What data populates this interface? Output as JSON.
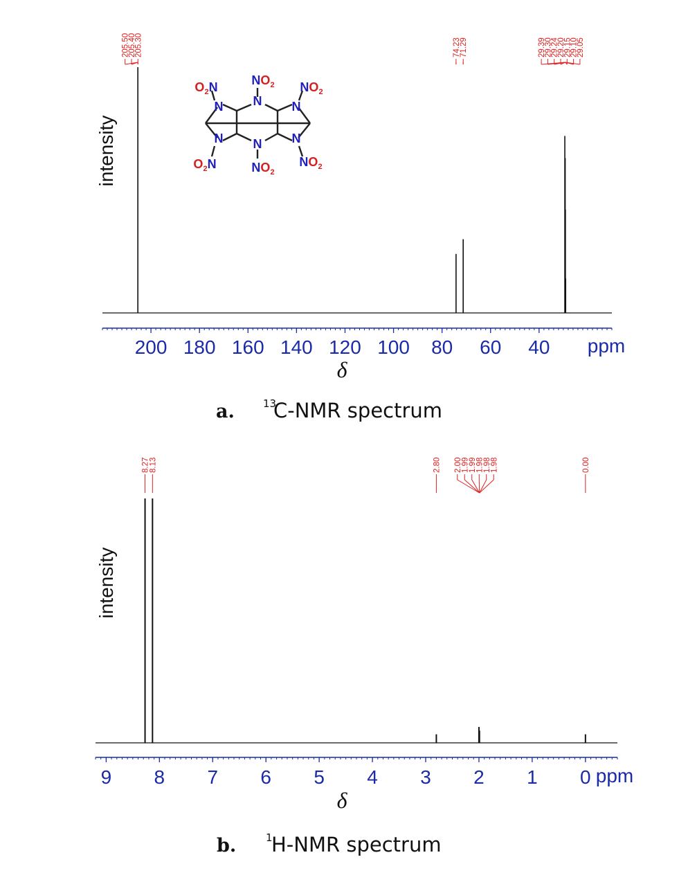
{
  "chart_data": [
    {
      "type": "line",
      "panel_letter": "a.",
      "caption_sup": "13",
      "caption_text": "C-NMR spectrum",
      "ylabel": "intensity",
      "xlabel": "δ",
      "x_unit": "ppm",
      "x_reversed": true,
      "xlim": [
        220,
        10
      ],
      "x_ticks": [
        200,
        180,
        160,
        140,
        120,
        100,
        80,
        60,
        40
      ],
      "peaks": [
        {
          "x": 205.4,
          "height": 1.0
        },
        {
          "x": 74.23,
          "height": 0.24
        },
        {
          "x": 71.29,
          "height": 0.3
        },
        {
          "x": 29.39,
          "height": 0.72
        },
        {
          "x": 29.24,
          "height": 0.63
        },
        {
          "x": 29.15,
          "height": 0.42
        },
        {
          "x": 29.05,
          "height": 0.14
        }
      ],
      "peak_label_groups": [
        {
          "labels": [
            "205.50",
            "205.40",
            "205.30"
          ],
          "target": 205.4
        },
        {
          "labels": [
            "74.23"
          ],
          "target": 74.23
        },
        {
          "labels": [
            "71.29"
          ],
          "target": 71.29
        },
        {
          "labels": [
            "29.39",
            "29.30",
            "29.24",
            "29.20",
            "29.15",
            "29.10",
            "29.05"
          ],
          "target": 29.2
        }
      ],
      "structure": {
        "nitro_labels": [
          "O2N",
          "NO2",
          "NO2",
          "O2N",
          "NO2",
          "NO2"
        ],
        "ring_atom": "N"
      }
    },
    {
      "type": "line",
      "panel_letter": "b.",
      "caption_sup": "1",
      "caption_text": "H-NMR spectrum",
      "ylabel": "intensity",
      "xlabel": "δ",
      "x_unit": "ppm",
      "x_reversed": true,
      "xlim": [
        9.2,
        -0.6
      ],
      "x_ticks": [
        9,
        8,
        7,
        6,
        5,
        4,
        3,
        2,
        1,
        0
      ],
      "peaks": [
        {
          "x": 8.27,
          "height": 1.0
        },
        {
          "x": 8.13,
          "height": 1.0
        },
        {
          "x": 2.8,
          "height": 0.035
        },
        {
          "x": 2.0,
          "height": 0.065
        },
        {
          "x": 1.99,
          "height": 0.05
        },
        {
          "x": 0.0,
          "height": 0.035
        }
      ],
      "peak_label_groups": [
        {
          "labels": [
            "8.27"
          ],
          "target": 8.27
        },
        {
          "labels": [
            "8.13"
          ],
          "target": 8.13
        },
        {
          "labels": [
            "2.80"
          ],
          "target": 2.8
        },
        {
          "labels": [
            "2.00",
            "1.99",
            "1.99",
            "1.98",
            "1.98",
            "1.98"
          ],
          "target": 1.99
        },
        {
          "labels": [
            "0.00"
          ],
          "target": 0.0
        }
      ]
    }
  ],
  "colors": {
    "axis_text": "#1a2aa8",
    "peak_label": "#e02020",
    "nitrogen": "#2020c0",
    "oxygen": "#d42020",
    "trace": "#111111"
  }
}
